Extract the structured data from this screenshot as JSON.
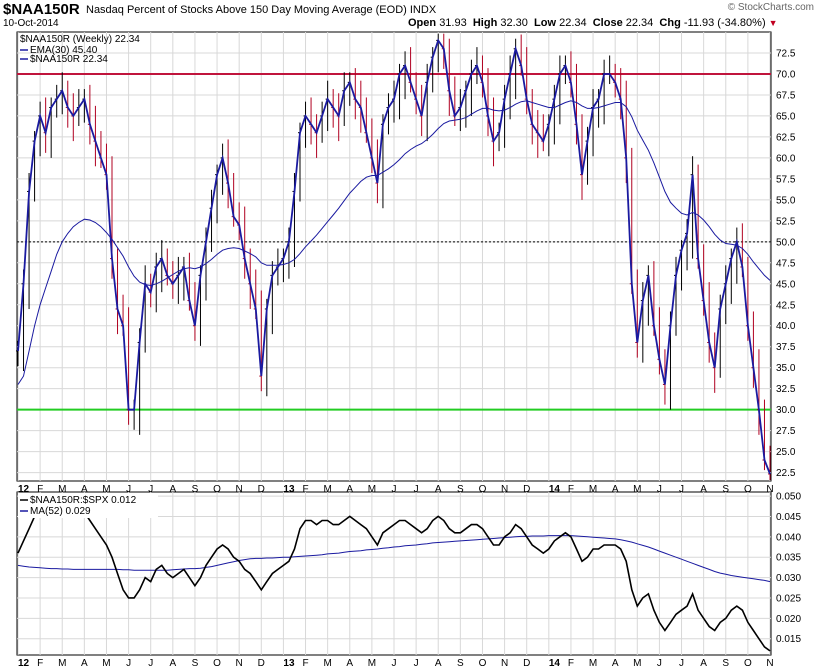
{
  "header": {
    "symbol": "$NAA150R",
    "description": "Nasdaq Percent of Stocks Above 150 Day Moving Average (EOD)",
    "exchange": "INDX",
    "date": "10-Oct-2014",
    "brand": "© StockCharts.com",
    "open_label": "Open",
    "open": "31.93",
    "high_label": "High",
    "high": "32.30",
    "low_label": "Low",
    "low": "22.34",
    "close_label": "Close",
    "close": "22.34",
    "chg_label": "Chg",
    "chg": "-11.93 (-34.80%)",
    "chg_marker": "▼"
  },
  "colors": {
    "price_line": "#1a1aa0",
    "ema_line": "#1a1aa0",
    "up_bar": "#000000",
    "down_bar": "#b00020",
    "upper_ref": "#c0143c",
    "lower_ref": "#22cc22",
    "mid_ref": "#000000",
    "grid": "#d8d8d8",
    "ratio_line": "#000000",
    "ratio_ma": "#1a1aa0"
  },
  "chart_data": [
    {
      "type": "line",
      "title": "$NAA150R (Weekly) 22.34",
      "legend": [
        "EMA(30) 45.40",
        "$NAA150R 22.34"
      ],
      "legend_position": "top-left",
      "y_ticks": [
        "72.5",
        "70.0",
        "67.5",
        "65.0",
        "62.5",
        "60.0",
        "57.5",
        "55.0",
        "52.5",
        "50.0",
        "47.5",
        "45.0",
        "42.5",
        "40.0",
        "37.5",
        "35.0",
        "32.5",
        "30.0",
        "27.5",
        "25.0",
        "22.5"
      ],
      "ylim": [
        21.5,
        75
      ],
      "reference_lines": [
        70,
        50,
        30
      ],
      "x_labels": [
        "12",
        "F",
        "M",
        "A",
        "M",
        "J",
        "J",
        "A",
        "S",
        "O",
        "N",
        "D",
        "13",
        "F",
        "M",
        "A",
        "M",
        "J",
        "J",
        "A",
        "S",
        "O",
        "N",
        "D",
        "14",
        "F",
        "M",
        "A",
        "M",
        "J",
        "J",
        "A",
        "S",
        "O",
        "N"
      ],
      "grid": true,
      "series": [
        {
          "name": "$NAA150R",
          "values": [
            37,
            45,
            56,
            62,
            65,
            63,
            66,
            67,
            68,
            66,
            65,
            66,
            67,
            64,
            62,
            60,
            58,
            48,
            42,
            40,
            30,
            30,
            38,
            45,
            44,
            47,
            48,
            46,
            45,
            46,
            47,
            43,
            40,
            46,
            50,
            54,
            58,
            60,
            57,
            53,
            52,
            48,
            45,
            42,
            34,
            42,
            46,
            47,
            48,
            50,
            56,
            63,
            65,
            64,
            63,
            65,
            67,
            66,
            65,
            68,
            69,
            67,
            66,
            63,
            60,
            57,
            64,
            66,
            67,
            70,
            71,
            69,
            67,
            65,
            69,
            72,
            74,
            73,
            68,
            65,
            66,
            68,
            70,
            71,
            69,
            65,
            62,
            63,
            67,
            70,
            73,
            71,
            67,
            64,
            63,
            62,
            64,
            67,
            70,
            71,
            69,
            64,
            58,
            62,
            66,
            67,
            70,
            70,
            69,
            67,
            60,
            45,
            38,
            43,
            46,
            40,
            36,
            33,
            40,
            46,
            49,
            51,
            58,
            48,
            43,
            38,
            35,
            42,
            45,
            48,
            50,
            47,
            40,
            35,
            30,
            24,
            22.34
          ]
        },
        {
          "name": "EMA(30)",
          "values": [
            33,
            34,
            37,
            40,
            42.5,
            44.5,
            46.5,
            48.5,
            50,
            51,
            51.8,
            52.3,
            52.7,
            52.6,
            52.3,
            51.8,
            51.1,
            50.3,
            49.3,
            48.3,
            47,
            45.9,
            45.2,
            44.9,
            44.8,
            45,
            45.3,
            45.7,
            46.1,
            46.5,
            46.8,
            46.9,
            46.8,
            47,
            47.4,
            47.9,
            48.5,
            49,
            49.2,
            49.3,
            49.2,
            48.9,
            48.6,
            48.2,
            47.5,
            47.2,
            47.2,
            47.2,
            47.3,
            47.5,
            47.9,
            48.6,
            49.4,
            50.1,
            50.8,
            51.6,
            52.4,
            53.2,
            54,
            54.9,
            55.8,
            56.5,
            57.2,
            57.7,
            57.9,
            57.9,
            58.3,
            58.7,
            59.2,
            59.8,
            60.5,
            61,
            61.4,
            61.7,
            62.2,
            62.8,
            63.5,
            64.1,
            64.4,
            64.5,
            64.6,
            64.8,
            65.2,
            65.6,
            65.9,
            65.9,
            65.7,
            65.6,
            65.7,
            66,
            66.4,
            66.7,
            66.8,
            66.6,
            66.4,
            66.2,
            66,
            66,
            66.3,
            66.6,
            66.8,
            66.6,
            66.2,
            65.9,
            65.9,
            66,
            66.2,
            66.4,
            66.6,
            66.6,
            66.1,
            64.9,
            63.3,
            62.1,
            60.9,
            59.4,
            57.7,
            56,
            54.7,
            54,
            53.4,
            53.2,
            53.5,
            53.2,
            52.6,
            51.8,
            50.9,
            50.2,
            49.8,
            49.7,
            49.6,
            49.2,
            48.5,
            47.6,
            46.8,
            46,
            45.4
          ]
        }
      ]
    },
    {
      "type": "line",
      "title": "$NAA150R:$SPX 0.012",
      "legend": [
        "$NAA150R:$SPX 0.012",
        "MA(52) 0.029"
      ],
      "legend_position": "top-left",
      "y_ticks": [
        "0.050",
        "0.045",
        "0.040",
        "0.035",
        "0.030",
        "0.025",
        "0.020",
        "0.015"
      ],
      "ylim": [
        0.011,
        0.051
      ],
      "x_labels": [
        "12",
        "F",
        "M",
        "A",
        "M",
        "J",
        "J",
        "A",
        "S",
        "O",
        "N",
        "D",
        "13",
        "F",
        "M",
        "A",
        "M",
        "J",
        "J",
        "A",
        "S",
        "O",
        "N",
        "D",
        "14",
        "F",
        "M",
        "A",
        "M",
        "J",
        "J",
        "A",
        "S",
        "O",
        "N"
      ],
      "grid": true,
      "series": [
        {
          "name": "$NAA150R:$SPX",
          "values": [
            0.036,
            0.039,
            0.042,
            0.045,
            0.046,
            0.047,
            0.048,
            0.049,
            0.049,
            0.05,
            0.049,
            0.047,
            0.046,
            0.044,
            0.042,
            0.04,
            0.038,
            0.035,
            0.031,
            0.027,
            0.025,
            0.025,
            0.027,
            0.03,
            0.029,
            0.032,
            0.033,
            0.031,
            0.03,
            0.031,
            0.032,
            0.03,
            0.028,
            0.03,
            0.033,
            0.035,
            0.037,
            0.038,
            0.037,
            0.035,
            0.034,
            0.032,
            0.031,
            0.029,
            0.027,
            0.029,
            0.031,
            0.032,
            0.033,
            0.034,
            0.037,
            0.042,
            0.044,
            0.044,
            0.043,
            0.044,
            0.044,
            0.043,
            0.043,
            0.044,
            0.045,
            0.044,
            0.043,
            0.042,
            0.04,
            0.038,
            0.041,
            0.042,
            0.043,
            0.044,
            0.044,
            0.043,
            0.042,
            0.041,
            0.042,
            0.044,
            0.045,
            0.044,
            0.042,
            0.041,
            0.041,
            0.042,
            0.043,
            0.043,
            0.042,
            0.04,
            0.038,
            0.038,
            0.04,
            0.041,
            0.043,
            0.042,
            0.04,
            0.038,
            0.037,
            0.036,
            0.037,
            0.039,
            0.04,
            0.041,
            0.04,
            0.037,
            0.034,
            0.035,
            0.037,
            0.037,
            0.038,
            0.038,
            0.038,
            0.037,
            0.034,
            0.027,
            0.023,
            0.025,
            0.026,
            0.022,
            0.019,
            0.017,
            0.019,
            0.021,
            0.022,
            0.023,
            0.026,
            0.022,
            0.02,
            0.018,
            0.017,
            0.019,
            0.02,
            0.022,
            0.023,
            0.022,
            0.019,
            0.017,
            0.015,
            0.013,
            0.012
          ]
        },
        {
          "name": "MA(52)",
          "values": [
            0.033,
            0.0328,
            0.0326,
            0.0325,
            0.0324,
            0.0323,
            0.0322,
            0.0322,
            0.0321,
            0.0321,
            0.032,
            0.032,
            0.032,
            0.032,
            0.032,
            0.032,
            0.032,
            0.032,
            0.032,
            0.0319,
            0.0319,
            0.0318,
            0.0318,
            0.0318,
            0.0318,
            0.0318,
            0.0318,
            0.0318,
            0.0319,
            0.032,
            0.0321,
            0.0322,
            0.0322,
            0.0323,
            0.0325,
            0.0327,
            0.033,
            0.0333,
            0.0336,
            0.0339,
            0.0342,
            0.0344,
            0.0346,
            0.0347,
            0.0347,
            0.0348,
            0.0348,
            0.0349,
            0.035,
            0.035,
            0.0351,
            0.0352,
            0.0353,
            0.0354,
            0.0355,
            0.0356,
            0.0358,
            0.0359,
            0.036,
            0.0362,
            0.0364,
            0.0365,
            0.0366,
            0.0368,
            0.0369,
            0.037,
            0.0372,
            0.0373,
            0.0375,
            0.0376,
            0.0378,
            0.0379,
            0.038,
            0.0382,
            0.0383,
            0.0385,
            0.0386,
            0.0387,
            0.0388,
            0.0389,
            0.039,
            0.0391,
            0.0392,
            0.0393,
            0.0394,
            0.0395,
            0.0396,
            0.0397,
            0.0398,
            0.0399,
            0.04,
            0.0401,
            0.0401,
            0.0402,
            0.0402,
            0.0402,
            0.0403,
            0.0403,
            0.0403,
            0.0403,
            0.0403,
            0.0402,
            0.0401,
            0.04,
            0.0399,
            0.0398,
            0.0397,
            0.0396,
            0.0395,
            0.0393,
            0.039,
            0.0387,
            0.0383,
            0.0379,
            0.0375,
            0.037,
            0.0365,
            0.036,
            0.0355,
            0.035,
            0.0345,
            0.034,
            0.0335,
            0.033,
            0.0325,
            0.032,
            0.0315,
            0.0311,
            0.0308,
            0.0305,
            0.0303,
            0.0301,
            0.0299,
            0.0297,
            0.0295,
            0.0293,
            0.029
          ]
        }
      ]
    }
  ]
}
